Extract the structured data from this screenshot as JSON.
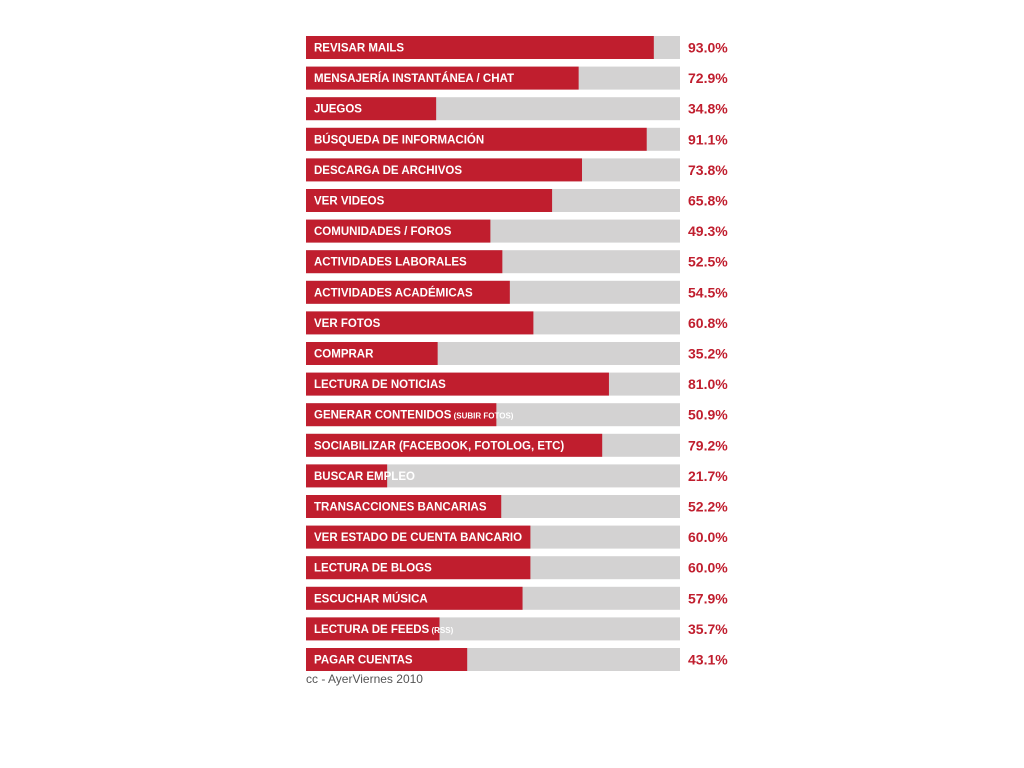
{
  "chart_data": {
    "type": "bar",
    "orientation": "horizontal",
    "categories": [
      {
        "label": "REVISAR MAILS",
        "note": ""
      },
      {
        "label": "MENSAJERÍA INSTANTÁNEA / CHAT",
        "note": ""
      },
      {
        "label": "JUEGOS",
        "note": ""
      },
      {
        "label": "BÚSQUEDA DE INFORMACIÓN",
        "note": ""
      },
      {
        "label": "DESCARGA DE ARCHIVOS",
        "note": ""
      },
      {
        "label": "VER VIDEOS",
        "note": ""
      },
      {
        "label": "COMUNIDADES / FOROS",
        "note": ""
      },
      {
        "label": "ACTIVIDADES LABORALES",
        "note": ""
      },
      {
        "label": "ACTIVIDADES ACADÉMICAS",
        "note": ""
      },
      {
        "label": "VER FOTOS",
        "note": ""
      },
      {
        "label": "COMPRAR",
        "note": ""
      },
      {
        "label": "LECTURA DE NOTICIAS",
        "note": ""
      },
      {
        "label": "GENERAR CONTENIDOS",
        "note": "(SUBIR FOTOS)"
      },
      {
        "label": "SOCIABILIZAR (FACEBOOK, FOTOLOG, ETC)",
        "note": ""
      },
      {
        "label": "BUSCAR EMPLEO",
        "note": ""
      },
      {
        "label": "TRANSACCIONES BANCARIAS",
        "note": ""
      },
      {
        "label": "VER ESTADO DE CUENTA BANCARIO",
        "note": ""
      },
      {
        "label": "LECTURA DE BLOGS",
        "note": ""
      },
      {
        "label": "ESCUCHAR MÚSICA",
        "note": ""
      },
      {
        "label": "LECTURA DE FEEDS",
        "note": "(RSS)"
      },
      {
        "label": "PAGAR CUENTAS",
        "note": ""
      }
    ],
    "values": [
      93.0,
      72.9,
      34.8,
      91.1,
      73.8,
      65.8,
      49.3,
      52.5,
      54.5,
      60.8,
      35.2,
      81.0,
      50.9,
      79.2,
      21.7,
      52.2,
      60.0,
      60.0,
      57.9,
      35.7,
      43.1
    ],
    "value_labels": [
      "93.0%",
      "72.9%",
      "34.8%",
      "91.1%",
      "73.8%",
      "65.8%",
      "49.3%",
      "52.5%",
      "54.5%",
      "60.8%",
      "35.2%",
      "81.0%",
      "50.9%",
      "79.2%",
      "21.7%",
      "52.2%",
      "60.0%",
      "60.0%",
      "57.9%",
      "35.7%",
      "43.1%"
    ],
    "xlim": [
      0,
      100
    ],
    "unit": "%",
    "title": "",
    "xlabel": "",
    "ylabel": "",
    "grid": false,
    "legend": "none",
    "colors": {
      "bar": "#c01e2e",
      "track": "#d3d2d2",
      "value_text": "#c01e2e",
      "bar_text": "#ffffff"
    }
  },
  "credit": "cc - AyerViernes 2010"
}
